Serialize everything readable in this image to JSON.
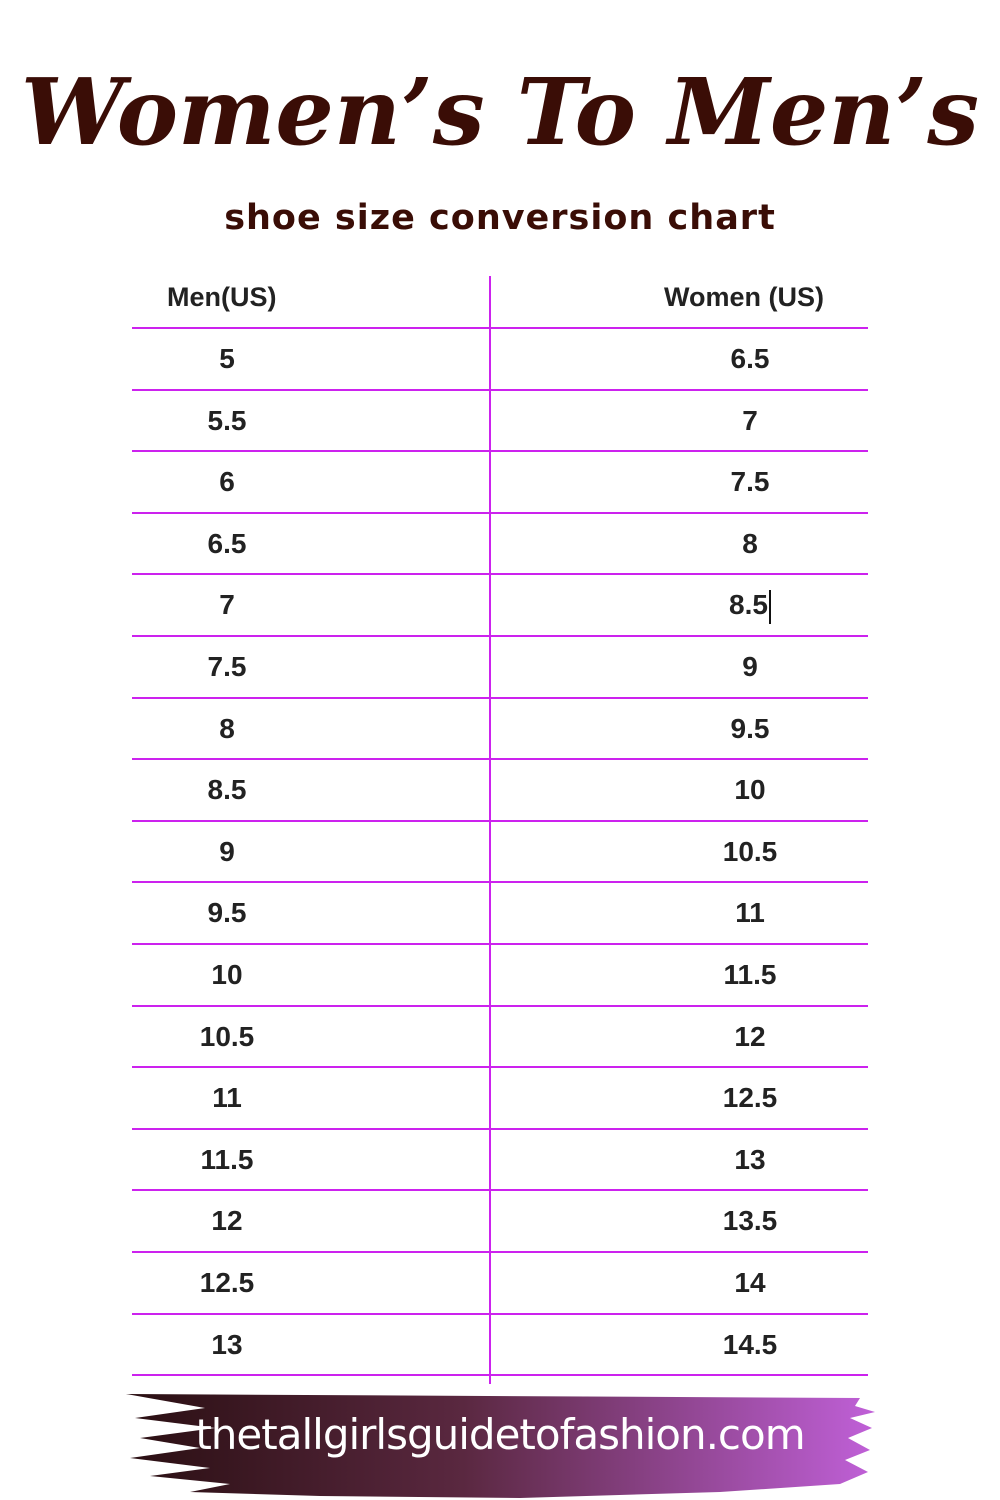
{
  "title": "Women’s To Men’s",
  "subtitle": "shoe size conversion chart",
  "table": {
    "headers": {
      "men": "Men(US)",
      "women": "Women (US)"
    },
    "rows": [
      {
        "men": "5",
        "women": "6.5"
      },
      {
        "men": "5.5",
        "women": "7"
      },
      {
        "men": "6",
        "women": "7.5"
      },
      {
        "men": "6.5",
        "women": "8"
      },
      {
        "men": "7",
        "women": "8.5"
      },
      {
        "men": "7.5",
        "women": "9"
      },
      {
        "men": "8",
        "women": "9.5"
      },
      {
        "men": "8.5",
        "women": "10"
      },
      {
        "men": "9",
        "women": "10.5"
      },
      {
        "men": "9.5",
        "women": "11"
      },
      {
        "men": "10",
        "women": "11.5"
      },
      {
        "men": "10.5",
        "women": "12"
      },
      {
        "men": "11",
        "women": "12.5"
      },
      {
        "men": "11.5",
        "women": "13"
      },
      {
        "men": "12",
        "women": "13.5"
      },
      {
        "men": "12.5",
        "women": "14"
      },
      {
        "men": "13",
        "women": "14.5"
      }
    ]
  },
  "footer": {
    "website": "thetallgirlsguidetofashion.com"
  },
  "colors": {
    "title": "#3a0d06",
    "grid": "#cc22ee",
    "brush_start": "#2a0f12",
    "brush_end": "#c060d8"
  }
}
